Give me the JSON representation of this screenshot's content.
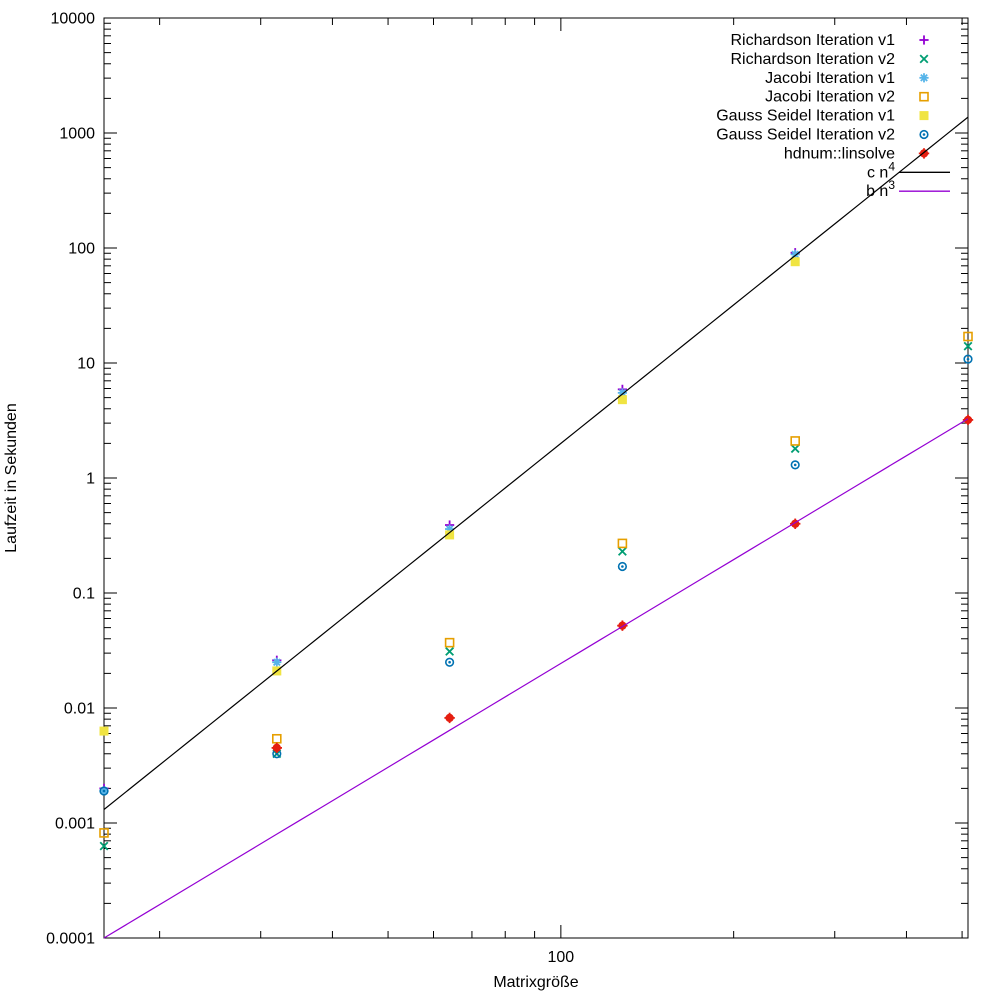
{
  "chart_data": {
    "type": "scatter",
    "title": "",
    "xlabel": "Matrixgröße",
    "ylabel": "Laufzeit in Sekunden",
    "x_scale": "log",
    "y_scale": "log",
    "xlim": [
      16,
      512
    ],
    "ylim": [
      0.0001,
      10000
    ],
    "grid": false,
    "legend_position": "top-right-inside",
    "x_ticks": {
      "major": [
        {
          "value": 100,
          "label": "100"
        }
      ],
      "minor": [
        20,
        30,
        40,
        50,
        60,
        70,
        80,
        90,
        200,
        300,
        400,
        500
      ]
    },
    "y_ticks": {
      "major": [
        {
          "value": 10000,
          "label": "10000"
        },
        {
          "value": 1000,
          "label": "1000"
        },
        {
          "value": 100,
          "label": "100"
        },
        {
          "value": 10,
          "label": "10"
        },
        {
          "value": 1,
          "label": "1"
        },
        {
          "value": 0.1,
          "label": "0.1"
        },
        {
          "value": 0.01,
          "label": "0.01"
        },
        {
          "value": 0.001,
          "label": "0.001"
        },
        {
          "value": 0.0001,
          "label": "0.0001"
        }
      ],
      "minor_multiples": [
        2,
        3,
        4,
        5,
        6,
        7,
        8,
        9
      ]
    },
    "series": [
      {
        "name": "richardson-v1",
        "label": "Richardson Iteration v1",
        "marker": "plus",
        "color": "#9400d3",
        "points": [
          [
            16,
            0.002
          ],
          [
            32,
            0.026
          ],
          [
            64,
            0.39
          ],
          [
            128,
            5.9
          ],
          [
            256,
            91
          ]
        ]
      },
      {
        "name": "richardson-v2",
        "label": "Richardson Iteration v2",
        "marker": "cross",
        "color": "#009e73",
        "points": [
          [
            16,
            0.00063
          ],
          [
            32,
            0.004
          ],
          [
            64,
            0.031
          ],
          [
            128,
            0.23
          ],
          [
            256,
            1.8
          ],
          [
            512,
            14
          ]
        ]
      },
      {
        "name": "jacobi-v1",
        "label": "Jacobi Iteration v1",
        "marker": "asterisk",
        "color": "#56b4e9",
        "points": [
          [
            16,
            0.0019
          ],
          [
            32,
            0.025
          ],
          [
            64,
            0.36
          ],
          [
            128,
            5.5
          ],
          [
            256,
            88
          ]
        ]
      },
      {
        "name": "jacobi-v2",
        "label": "Jacobi Iteration v2",
        "marker": "square-open",
        "color": "#e69f00",
        "points": [
          [
            16,
            0.00082
          ],
          [
            32,
            0.0054
          ],
          [
            64,
            0.037
          ],
          [
            128,
            0.27
          ],
          [
            256,
            2.1
          ],
          [
            512,
            17
          ]
        ]
      },
      {
        "name": "gauss-seidel-v1",
        "label": "Gauss Seidel Iteration v1",
        "marker": "square-filled",
        "color": "#f0e442",
        "points": [
          [
            16,
            0.0063
          ],
          [
            32,
            0.021
          ],
          [
            64,
            0.32
          ],
          [
            128,
            4.8
          ],
          [
            256,
            76
          ]
        ]
      },
      {
        "name": "gauss-seidel-v2",
        "label": "Gauss Seidel Iteration v2",
        "marker": "circle-open",
        "color": "#0072b2",
        "points": [
          [
            16,
            0.0019
          ],
          [
            32,
            0.004
          ],
          [
            64,
            0.025
          ],
          [
            128,
            0.17
          ],
          [
            256,
            1.3
          ],
          [
            512,
            10.8
          ]
        ]
      },
      {
        "name": "hdnum-linsolve",
        "label": "hdnum::linsolve",
        "marker": "circle-filled",
        "color": "#e51e10",
        "points": [
          [
            32,
            0.0045
          ],
          [
            64,
            0.0082
          ],
          [
            128,
            0.052
          ],
          [
            256,
            0.4
          ],
          [
            512,
            3.2
          ]
        ]
      }
    ],
    "lines": [
      {
        "name": "c-n4",
        "label": "c n",
        "label_sup": "4",
        "color": "#000000",
        "coeff": 2e-08,
        "exponent": 4
      },
      {
        "name": "b-n3",
        "label": "b n",
        "label_sup": "3",
        "color": "#9400d3",
        "coeff": 2.44e-08,
        "exponent": 3
      }
    ],
    "frame_color": "#000000",
    "background_color": "#ffffff"
  }
}
